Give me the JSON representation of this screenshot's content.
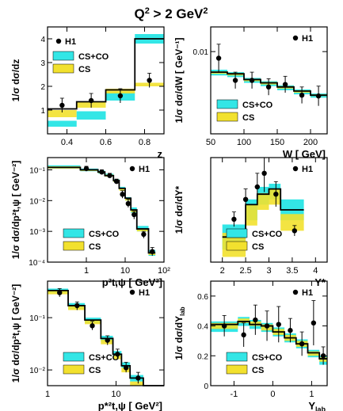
{
  "page": {
    "title_main": "Q",
    "title_sup": "2",
    "title_rest": " > 2 GeV",
    "title_sup2": "2"
  },
  "colors": {
    "cs_co": "#33e6e6",
    "cs": "#f2e12e",
    "line": "#000000"
  },
  "chart_data": [
    {
      "id": "z",
      "type": "line",
      "ylabel": "1/σ dσ/dz",
      "xlabel": "z",
      "xlim": [
        0.3,
        0.9
      ],
      "ylim": [
        0,
        4.5
      ],
      "log_x": false,
      "log_y": false,
      "xticks": [
        "0.4",
        "0.6",
        "0.8"
      ],
      "yticks": [
        "1",
        "2",
        "3",
        "4"
      ],
      "legend": [
        "H1",
        "CS+CO",
        "CS"
      ],
      "bins": [
        0.3,
        0.45,
        0.6,
        0.75,
        0.9
      ],
      "line_values": [
        1.05,
        1.35,
        1.85,
        4.0
      ],
      "cs_co_band": [
        [
          0.3,
          0.55
        ],
        [
          0.6,
          0.95
        ],
        [
          1.4,
          1.75
        ],
        [
          3.8,
          4.2
        ]
      ],
      "cs_band": [
        [
          0.7,
          1.0
        ],
        [
          1.1,
          1.35
        ],
        [
          1.7,
          1.9
        ],
        [
          2.0,
          2.15
        ]
      ],
      "points": [
        {
          "x": 0.375,
          "y": 1.2,
          "err": 0.3
        },
        {
          "x": 0.525,
          "y": 1.4,
          "err": 0.3
        },
        {
          "x": 0.675,
          "y": 1.6,
          "err": 0.3
        },
        {
          "x": 0.825,
          "y": 2.25,
          "err": 0.3
        }
      ]
    },
    {
      "id": "W",
      "type": "line",
      "ylabel": "1/σ dσ/dW [ GeV⁻¹]",
      "xlabel": "W [ GeV]",
      "xlim": [
        50,
        225
      ],
      "ylim": [
        0,
        0.013
      ],
      "log_x": false,
      "log_y": false,
      "xticks": [
        "50",
        "100",
        "150",
        "200"
      ],
      "yticks": [
        "0.01"
      ],
      "legend": [
        "H1",
        "CS+CO",
        "CS"
      ],
      "bins": [
        50,
        75,
        100,
        125,
        150,
        175,
        200,
        225
      ],
      "line_values": [
        0.0075,
        0.0073,
        0.0066,
        0.0062,
        0.0057,
        0.0052,
        0.0047
      ],
      "cs_co_band": [
        [
          0.0071,
          0.0078
        ],
        [
          0.0069,
          0.0075
        ],
        [
          0.0062,
          0.0068
        ],
        [
          0.0058,
          0.0064
        ],
        [
          0.0053,
          0.0059
        ],
        [
          0.0048,
          0.0054
        ],
        [
          0.0044,
          0.0049
        ]
      ],
      "cs_band": [
        [
          0.0073,
          0.0076
        ],
        [
          0.0071,
          0.0074
        ],
        [
          0.0064,
          0.0067
        ],
        [
          0.006,
          0.0063
        ],
        [
          0.0055,
          0.0058
        ],
        [
          0.005,
          0.0053
        ],
        [
          0.0046,
          0.0048
        ]
      ],
      "points": [
        {
          "x": 62,
          "y": 0.0092,
          "err": 0.0017
        },
        {
          "x": 87,
          "y": 0.0065,
          "err": 0.001
        },
        {
          "x": 112,
          "y": 0.0065,
          "err": 0.001
        },
        {
          "x": 137,
          "y": 0.0057,
          "err": 0.001
        },
        {
          "x": 162,
          "y": 0.006,
          "err": 0.001
        },
        {
          "x": 187,
          "y": 0.0047,
          "err": 0.001
        },
        {
          "x": 212,
          "y": 0.0046,
          "err": 0.0012
        }
      ]
    },
    {
      "id": "pt2",
      "type": "line",
      "ylabel": "1/σ dσ/dp²t,ψ [ GeV⁻²]",
      "xlabel": "p²t,ψ [ GeV²]",
      "xlim": [
        0.1,
        100
      ],
      "ylim": [
        0.0001,
        0.25
      ],
      "log_x": true,
      "log_y": true,
      "xticks": [
        "1",
        "10",
        "10²"
      ],
      "yticks": [
        "10⁻⁴",
        "10⁻³",
        "10⁻²",
        "10⁻¹"
      ],
      "legend": [
        "H1",
        "CS+CO",
        "CS"
      ],
      "bins": [
        0.1,
        0.7,
        2,
        3,
        5,
        7,
        10,
        14,
        20,
        40,
        60
      ],
      "line_values": [
        0.12,
        0.1,
        0.085,
        0.065,
        0.045,
        0.025,
        0.012,
        0.005,
        0.0012,
        0.0002
      ],
      "cs_co_band": [
        [
          0.11,
          0.14
        ],
        [
          0.09,
          0.11
        ],
        [
          0.075,
          0.095
        ],
        [
          0.06,
          0.075
        ],
        [
          0.04,
          0.05
        ],
        [
          0.022,
          0.028
        ],
        [
          0.01,
          0.013
        ],
        [
          0.004,
          0.006
        ],
        [
          0.001,
          0.0015
        ],
        [
          0.00016,
          0.00025
        ]
      ],
      "cs_band": [
        [
          0.11,
          0.13
        ],
        [
          0.092,
          0.105
        ],
        [
          0.078,
          0.09
        ],
        [
          0.06,
          0.07
        ],
        [
          0.04,
          0.048
        ],
        [
          0.021,
          0.026
        ],
        [
          0.01,
          0.012
        ],
        [
          0.0042,
          0.005
        ],
        [
          0.001,
          0.0012
        ],
        [
          0.00017,
          0.0002
        ]
      ],
      "points": [
        {
          "x": 1.0,
          "y": 0.11,
          "err_lo": 0.09,
          "err_hi": 0.13
        },
        {
          "x": 2.5,
          "y": 0.085,
          "err_lo": 0.07,
          "err_hi": 0.1
        },
        {
          "x": 4.0,
          "y": 0.065,
          "err_lo": 0.055,
          "err_hi": 0.077
        },
        {
          "x": 6.0,
          "y": 0.042,
          "err_lo": 0.035,
          "err_hi": 0.05
        },
        {
          "x": 8.5,
          "y": 0.016,
          "err_lo": 0.012,
          "err_hi": 0.021
        },
        {
          "x": 12,
          "y": 0.008,
          "err_lo": 0.006,
          "err_hi": 0.011
        },
        {
          "x": 17,
          "y": 0.0035,
          "err_lo": 0.0025,
          "err_hi": 0.0045
        },
        {
          "x": 30,
          "y": 0.0008,
          "err_lo": 0.0006,
          "err_hi": 0.001
        },
        {
          "x": 50,
          "y": 0.00022,
          "err_lo": 0.00016,
          "err_hi": 0.0003
        }
      ]
    },
    {
      "id": "Ystar",
      "type": "line",
      "ylabel": "1/σ dσ/dY*",
      "xlabel": "Y*",
      "xlim": [
        1.75,
        4.25
      ],
      "ylim": [
        0,
        1.0
      ],
      "log_x": false,
      "log_y": false,
      "xticks": [
        "2",
        "2.5",
        "3",
        "3.5",
        "4"
      ],
      "yticks": [],
      "legend": [
        "H1",
        "CS+CO",
        "CS"
      ],
      "bins": [
        2.0,
        2.5,
        2.75,
        3.0,
        3.25,
        3.75
      ],
      "line_values": [
        0.24,
        0.55,
        0.65,
        0.7,
        0.5
      ],
      "cs_co_band": [
        [
          0.12,
          0.36
        ],
        [
          0.4,
          0.6
        ],
        [
          0.55,
          0.72
        ],
        [
          0.6,
          0.75
        ],
        [
          0.4,
          0.6
        ]
      ],
      "cs_band": [
        [
          0.05,
          0.28
        ],
        [
          0.35,
          0.55
        ],
        [
          0.5,
          0.66
        ],
        [
          0.55,
          0.7
        ],
        [
          0.3,
          0.46
        ]
      ],
      "points": [
        {
          "x": 2.25,
          "y": 0.41,
          "err": 0.07
        },
        {
          "x": 2.5,
          "y": 0.6,
          "err": 0.1
        },
        {
          "x": 2.75,
          "y": 0.72,
          "err": 0.13
        },
        {
          "x": 2.9,
          "y": 0.85,
          "err": 0.18
        },
        {
          "x": 3.15,
          "y": 0.65,
          "err": 0.12
        },
        {
          "x": 3.55,
          "y": 0.3,
          "err": 0.05
        }
      ]
    },
    {
      "id": "pt2_wide",
      "type": "line",
      "ylabel": "1/σ dσ/dp²t,ψ [ GeV⁻²]",
      "xlabel": "p*²t,ψ [ GeV²]",
      "xlim": [
        1,
        50
      ],
      "ylim": [
        0.005,
        0.5
      ],
      "log_x": true,
      "log_y": true,
      "xticks": [
        "1",
        "10"
      ],
      "yticks": [
        "10⁻²",
        "10⁻¹"
      ],
      "legend": [
        "H1",
        "CS+CO",
        "CS"
      ],
      "bins": [
        1,
        2,
        3.5,
        6,
        9,
        12,
        16,
        25,
        50
      ],
      "line_values": [
        0.33,
        0.17,
        0.09,
        0.04,
        0.02,
        0.012,
        0.007,
        0.0025
      ],
      "cs_co_band": [
        [
          0.3,
          0.36
        ],
        [
          0.15,
          0.19
        ],
        [
          0.08,
          0.1
        ],
        [
          0.035,
          0.045
        ],
        [
          0.018,
          0.023
        ],
        [
          0.011,
          0.014
        ],
        [
          0.006,
          0.008
        ],
        [
          0.002,
          0.003
        ]
      ],
      "cs_band": [
        [
          0.28,
          0.33
        ],
        [
          0.14,
          0.17
        ],
        [
          0.075,
          0.09
        ],
        [
          0.031,
          0.038
        ],
        [
          0.016,
          0.019
        ],
        [
          0.009,
          0.011
        ],
        [
          0.005,
          0.006
        ],
        [
          0.0017,
          0.0021
        ]
      ],
      "points": [
        {
          "x": 1.5,
          "y": 0.3,
          "err_lo": 0.25,
          "err_hi": 0.36
        },
        {
          "x": 2.7,
          "y": 0.17,
          "err_lo": 0.14,
          "err_hi": 0.2
        },
        {
          "x": 4.5,
          "y": 0.07,
          "err_lo": 0.058,
          "err_hi": 0.085
        },
        {
          "x": 7.5,
          "y": 0.037,
          "err_lo": 0.03,
          "err_hi": 0.045
        },
        {
          "x": 10.5,
          "y": 0.02,
          "err_lo": 0.016,
          "err_hi": 0.025
        },
        {
          "x": 14,
          "y": 0.011,
          "err_lo": 0.009,
          "err_hi": 0.014
        },
        {
          "x": 21,
          "y": 0.007,
          "err_lo": 0.0055,
          "err_hi": 0.009
        }
      ]
    },
    {
      "id": "Ylab",
      "type": "line",
      "ylabel": "1/σ dσ/dY",
      "ylabel_sub": "lab",
      "xlabel": "Y",
      "xlabel_sub": "lab",
      "xlim": [
        -1.6,
        1.4
      ],
      "ylim": [
        0,
        0.7
      ],
      "log_x": false,
      "log_y": false,
      "xticks": [
        "-1",
        "0",
        "1"
      ],
      "yticks": [
        "0",
        "0.2",
        "0.4",
        "0.6"
      ],
      "legend": [
        "H1",
        "CS+CO",
        "CS"
      ],
      "bins": [
        -1.6,
        -0.9,
        -0.6,
        -0.3,
        0.0,
        0.3,
        0.6,
        0.9,
        1.2,
        1.4
      ],
      "line_values": [
        0.41,
        0.43,
        0.41,
        0.4,
        0.36,
        0.32,
        0.28,
        0.22,
        0.18
      ],
      "cs_co_band": [
        [
          0.36,
          0.43
        ],
        [
          0.4,
          0.46
        ],
        [
          0.38,
          0.44
        ],
        [
          0.36,
          0.42
        ],
        [
          0.33,
          0.39
        ],
        [
          0.29,
          0.35
        ],
        [
          0.25,
          0.31
        ],
        [
          0.19,
          0.24
        ],
        [
          0.14,
          0.2
        ]
      ],
      "cs_band": [
        [
          0.38,
          0.42
        ],
        [
          0.42,
          0.45
        ],
        [
          0.4,
          0.43
        ],
        [
          0.37,
          0.41
        ],
        [
          0.34,
          0.38
        ],
        [
          0.3,
          0.34
        ],
        [
          0.26,
          0.3
        ],
        [
          0.2,
          0.23
        ],
        [
          0.16,
          0.19
        ]
      ],
      "points": [
        {
          "x": -1.25,
          "y": 0.4,
          "err": 0.07
        },
        {
          "x": -0.75,
          "y": 0.34,
          "err": 0.08
        },
        {
          "x": -0.45,
          "y": 0.44,
          "err": 0.1
        },
        {
          "x": -0.15,
          "y": 0.4,
          "err": 0.1
        },
        {
          "x": 0.15,
          "y": 0.41,
          "err": 0.12
        },
        {
          "x": 0.45,
          "y": 0.37,
          "err": 0.08
        },
        {
          "x": 0.75,
          "y": 0.28,
          "err": 0.08
        },
        {
          "x": 1.05,
          "y": 0.42,
          "err": 0.15
        },
        {
          "x": 1.3,
          "y": 0.2,
          "err": 0.06
        }
      ]
    }
  ]
}
